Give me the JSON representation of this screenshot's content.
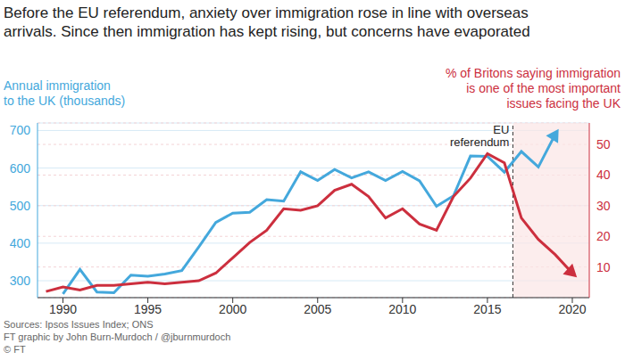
{
  "chart_data": {
    "type": "line",
    "title": "Before the EU referendum, anxiety over immigration rose in line with overseas\narrivals. Since then immigration has kept rising, but concerns have evaporated",
    "x": [
      1989,
      1990,
      1991,
      1992,
      1993,
      1994,
      1995,
      1996,
      1997,
      1998,
      1999,
      2000,
      2001,
      2002,
      2003,
      2004,
      2005,
      2006,
      2007,
      2008,
      2009,
      2010,
      2011,
      2012,
      2013,
      2014,
      2015,
      2016,
      2017,
      2018,
      2019,
      2020
    ],
    "series": [
      {
        "name": "Annual immigration\nto the UK (thousands)",
        "color": "#44a8dc",
        "values": [
          null,
          265,
          330,
          270,
          268,
          315,
          312,
          318,
          327,
          390,
          455,
          480,
          482,
          516,
          512,
          590,
          567,
          596,
          574,
          590,
          567,
          591,
          566,
          498,
          526,
          632,
          631,
          589,
          644,
          603,
          690,
          null
        ]
      },
      {
        "name": "% of Britons saying immigration\nis one of the most important\nissues facing the UK",
        "color": "#cc2f3e",
        "axis": "y2",
        "values": [
          2,
          3.5,
          2.5,
          4,
          4,
          4.5,
          5,
          4.5,
          5,
          5.5,
          8,
          13,
          18,
          22,
          29,
          28.5,
          30,
          35,
          37,
          33,
          26,
          29,
          24,
          22,
          33,
          39,
          47,
          44,
          26,
          19,
          14,
          8
        ]
      }
    ],
    "xlim": [
      1988.5,
      2021
    ],
    "xticks": [
      1990,
      1995,
      2000,
      2005,
      2010,
      2015,
      2020
    ],
    "ylim": [
      255,
      720
    ],
    "yticks": [
      300,
      400,
      500,
      600,
      700
    ],
    "y2lim": [
      0,
      57
    ],
    "y2ticks": [
      10,
      20,
      30,
      40,
      50
    ],
    "grid": true,
    "annotations": [
      {
        "text": "EU\nreferendum",
        "x": 2016.5
      }
    ],
    "source": "Sources: Ipsos Issues Index; ONS\nFT graphic by John Burn-Murdoch / @jburnmurdoch\n© FT"
  }
}
